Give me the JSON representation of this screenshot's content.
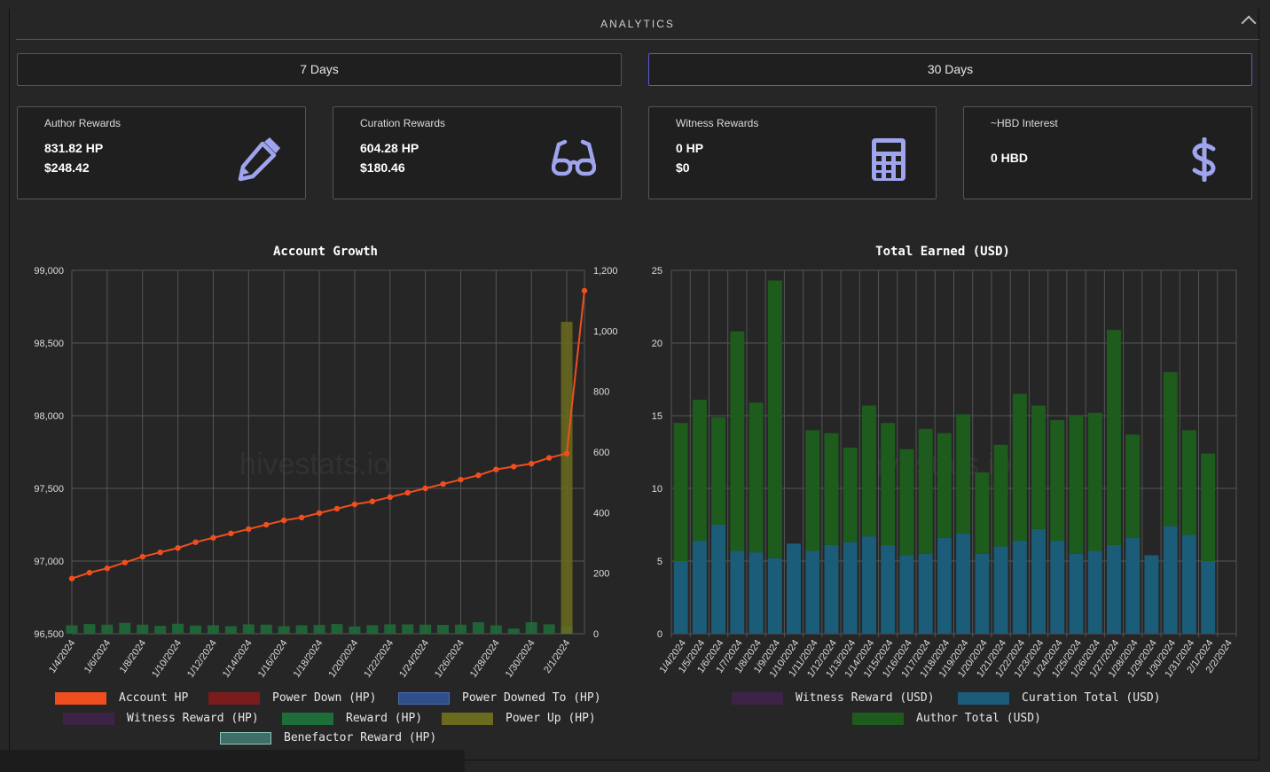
{
  "header": {
    "title": "ANALYTICS"
  },
  "range_buttons": [
    {
      "label": "7 Days",
      "active": false
    },
    {
      "label": "30 Days",
      "active": true
    }
  ],
  "cards": [
    {
      "title": "Author Rewards",
      "lines": [
        "831.82 HP",
        "$248.42"
      ],
      "icon": "pencil-icon"
    },
    {
      "title": "Curation Rewards",
      "lines": [
        "604.28 HP",
        "$180.46"
      ],
      "icon": "glasses-icon"
    },
    {
      "title": "Witness Rewards",
      "lines": [
        "0 HP",
        "$0"
      ],
      "icon": "calculator-icon"
    },
    {
      "title": "~HBD Interest",
      "lines": [
        "0 HBD"
      ],
      "icon": "dollar-icon"
    }
  ],
  "colors": {
    "icon": "#9fa4ee",
    "account_hp": "#f04e1e",
    "reward_hp": "#1e6e3a",
    "power_up": "#6b6b1f",
    "curation": "#1b5c78",
    "author": "#1d5c1d"
  },
  "watermark": "hivestats.io",
  "chart_data": [
    {
      "type": "line",
      "title": "Account Growth",
      "x": [
        "1/4/2024",
        "1/5/2024",
        "1/6/2024",
        "1/7/2024",
        "1/8/2024",
        "1/9/2024",
        "1/10/2024",
        "1/11/2024",
        "1/12/2024",
        "1/13/2024",
        "1/14/2024",
        "1/15/2024",
        "1/16/2024",
        "1/17/2024",
        "1/18/2024",
        "1/19/2024",
        "1/20/2024",
        "1/21/2024",
        "1/22/2024",
        "1/23/2024",
        "1/24/2024",
        "1/25/2024",
        "1/26/2024",
        "1/27/2024",
        "1/28/2024",
        "1/29/2024",
        "1/30/2024",
        "1/31/2024",
        "2/1/2024",
        "2/2/2024"
      ],
      "x_tick_labels": [
        "1/4/2024",
        "1/6/2024",
        "1/8/2024",
        "1/10/2024",
        "1/12/2024",
        "1/14/2024",
        "1/16/2024",
        "1/18/2024",
        "1/20/2024",
        "1/22/2024",
        "1/24/2024",
        "1/26/2024",
        "1/28/2024",
        "1/30/2024",
        "2/1/2024"
      ],
      "y_left_ticks": [
        "96,500",
        "97,000",
        "97,500",
        "98,000",
        "98,500",
        "99,000"
      ],
      "y_right_ticks": [
        "0",
        "200",
        "400",
        "600",
        "800",
        "1,000",
        "1,200"
      ],
      "ylim_left": [
        96500,
        99000
      ],
      "ylim_right": [
        0,
        1200
      ],
      "series": [
        {
          "name": "Account HP",
          "axis": "left",
          "type": "line",
          "values": [
            96880,
            96920,
            96950,
            96990,
            97030,
            97060,
            97090,
            97130,
            97160,
            97190,
            97220,
            97250,
            97280,
            97300,
            97330,
            97360,
            97390,
            97410,
            97440,
            97470,
            97500,
            97530,
            97560,
            97590,
            97630,
            97650,
            97670,
            97710,
            97740,
            98860
          ]
        },
        {
          "name": "Reward (HP)",
          "axis": "right",
          "type": "bar",
          "values": [
            28,
            32,
            30,
            36,
            30,
            26,
            33,
            27,
            28,
            25,
            31,
            30,
            25,
            28,
            29,
            32,
            24,
            28,
            31,
            31,
            30,
            29,
            30,
            38,
            28,
            17,
            38,
            31,
            24,
            0
          ]
        },
        {
          "name": "Power Up (HP)",
          "axis": "right",
          "type": "bar",
          "values": [
            0,
            0,
            0,
            0,
            0,
            0,
            0,
            0,
            0,
            0,
            0,
            0,
            0,
            0,
            0,
            0,
            0,
            0,
            0,
            0,
            0,
            0,
            0,
            0,
            0,
            0,
            0,
            0,
            1030,
            0
          ]
        }
      ],
      "legend": [
        {
          "name": "Account HP",
          "color": "#f04e1e"
        },
        {
          "name": "Power Down (HP)",
          "color": "#7a1c1c"
        },
        {
          "name": "Power Downed To (HP)",
          "color": "#2f4f8a"
        },
        {
          "name": "Witness Reward (HP)",
          "color": "#3d2447"
        },
        {
          "name": "Reward (HP)",
          "color": "#1e6e3a"
        },
        {
          "name": "Power Up (HP)",
          "color": "#6b6b1f"
        },
        {
          "name": "Benefactor Reward (HP)",
          "color": "#3e6e68"
        }
      ]
    },
    {
      "type": "bar",
      "title": "Total Earned (USD)",
      "categories": [
        "1/4/2024",
        "1/5/2024",
        "1/6/2024",
        "1/7/2024",
        "1/8/2024",
        "1/9/2024",
        "1/10/2024",
        "1/11/2024",
        "1/12/2024",
        "1/13/2024",
        "1/14/2024",
        "1/15/2024",
        "1/16/2024",
        "1/17/2024",
        "1/18/2024",
        "1/19/2024",
        "1/20/2024",
        "1/21/2024",
        "1/22/2024",
        "1/23/2024",
        "1/24/2024",
        "1/25/2024",
        "1/26/2024",
        "1/27/2024",
        "1/28/2024",
        "1/29/2024",
        "1/30/2024",
        "1/31/2024",
        "2/1/2024",
        "2/2/2024"
      ],
      "y_ticks": [
        "0",
        "5",
        "10",
        "15",
        "20",
        "25"
      ],
      "ylim": [
        0,
        25
      ],
      "stacked": true,
      "series": [
        {
          "name": "Curation Total (USD)",
          "color": "#1b5c78",
          "values": [
            5.0,
            6.4,
            7.5,
            5.7,
            5.6,
            5.2,
            6.2,
            5.7,
            6.1,
            6.3,
            6.7,
            6.1,
            5.4,
            5.5,
            6.6,
            6.9,
            5.5,
            6.0,
            6.4,
            7.2,
            6.4,
            5.5,
            5.7,
            6.1,
            6.6,
            5.4,
            7.4,
            6.8,
            5.0,
            0
          ]
        },
        {
          "name": "Author Total (USD)",
          "color": "#1d5c1d",
          "values": [
            9.5,
            9.7,
            7.4,
            15.1,
            10.3,
            19.1,
            0,
            8.3,
            7.7,
            6.5,
            9.0,
            8.4,
            7.3,
            8.6,
            7.2,
            8.2,
            5.6,
            7.0,
            10.1,
            8.5,
            8.3,
            9.5,
            9.5,
            14.8,
            7.1,
            0,
            10.6,
            7.2,
            7.4,
            0
          ]
        }
      ],
      "legend": [
        {
          "name": "Witness Reward (USD)",
          "color": "#3d2447"
        },
        {
          "name": "Curation Total (USD)",
          "color": "#1b5c78"
        },
        {
          "name": "Author Total (USD)",
          "color": "#1d5c1d"
        }
      ]
    }
  ]
}
